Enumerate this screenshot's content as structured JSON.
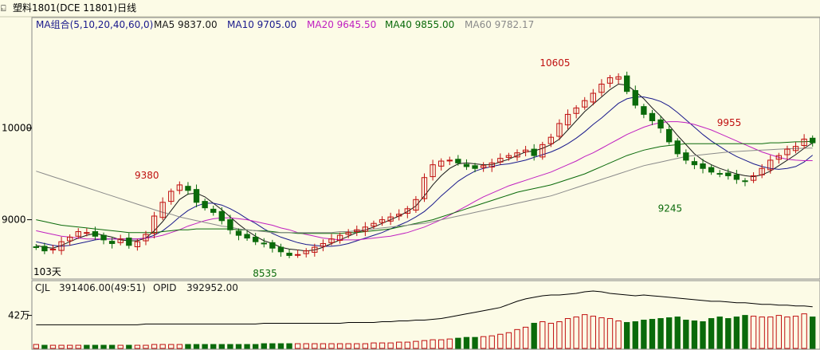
{
  "window": {
    "title": "塑料1801(DCE 11801)日线"
  },
  "legend": [
    {
      "label": "MA组合(5,10,20,40,60,0)",
      "color": "#1a1a8c"
    },
    {
      "label": "MA5 9837.00",
      "color": "#1a1a1a"
    },
    {
      "label": "MA10 9705.00",
      "color": "#1a1a8c"
    },
    {
      "label": "MA20 9645.50",
      "color": "#c020c0"
    },
    {
      "label": "MA40 9855.00",
      "color": "#0a6a0a"
    },
    {
      "label": "MA60 9782.17",
      "color": "#8a8a8a"
    }
  ],
  "volume_legend": [
    {
      "label": "CJL",
      "color": "#1a1a1a"
    },
    {
      "label": "391406.00(49:51)",
      "color": "#1a1a1a"
    },
    {
      "label": "OPID",
      "color": "#1a1a1a"
    },
    {
      "label": "392952.00",
      "color": "#1a1a1a"
    }
  ],
  "left_marker": "103天",
  "colors": {
    "up": "#c01010",
    "down": "#0a6a0a",
    "grid": "#d8d8c0",
    "axis": "#000000"
  },
  "chart_data": [
    {
      "type": "candlestick",
      "title": "塑料1801(DCE 11801)日线",
      "y_ticks": [
        9000,
        10000
      ],
      "ylim": [
        8370,
        11050
      ],
      "annotations": [
        {
          "label": "9380",
          "index": 13,
          "value": 9380
        },
        {
          "label": "8535",
          "index": 27,
          "value": 8535
        },
        {
          "label": "10605",
          "index": 61,
          "value": 10605
        },
        {
          "label": "9245",
          "index": 75,
          "value": 9245
        },
        {
          "label": "9955",
          "index": 82,
          "value": 9955
        }
      ],
      "closes": [
        8700,
        8660,
        8680,
        8760,
        8810,
        8870,
        8860,
        8820,
        8780,
        8740,
        8790,
        8720,
        8760,
        8840,
        9040,
        9190,
        9310,
        9380,
        9320,
        9190,
        9130,
        9080,
        8990,
        8890,
        8830,
        8800,
        8760,
        8740,
        8690,
        8650,
        8610,
        8620,
        8660,
        8700,
        8740,
        8790,
        8830,
        8860,
        8890,
        8920,
        8960,
        9000,
        9030,
        9060,
        9120,
        9220,
        9460,
        9600,
        9640,
        9650,
        9620,
        9580,
        9560,
        9590,
        9620,
        9670,
        9700,
        9730,
        9760,
        9700,
        9820,
        9900,
        10050,
        10150,
        10220,
        10300,
        10380,
        10480,
        10550,
        10560,
        10400,
        10250,
        10150,
        10080,
        10000,
        9850,
        9720,
        9650,
        9600,
        9560,
        9520,
        9500,
        9480,
        9440,
        9420,
        9480,
        9560,
        9650,
        9700,
        9770,
        9800,
        9880,
        9840
      ],
      "series": [
        {
          "name": "MA5",
          "values": [
            8720,
            8700,
            8690,
            8720,
            8760,
            8800,
            8830,
            8850,
            8830,
            8810,
            8780,
            8770,
            8770,
            8800,
            8880,
            8980,
            9100,
            9220,
            9280,
            9290,
            9250,
            9180,
            9110,
            9030,
            8950,
            8880,
            8820,
            8770,
            8740,
            8700,
            8680,
            8670,
            8660,
            8670,
            8700,
            8740,
            8780,
            8820,
            8860,
            8890,
            8920,
            8960,
            9000,
            9040,
            9090,
            9150,
            9260,
            9380,
            9480,
            9560,
            9610,
            9620,
            9610,
            9600,
            9600,
            9630,
            9660,
            9700,
            9740,
            9750,
            9780,
            9820,
            9880,
            9980,
            10080,
            10180,
            10260,
            10340,
            10420,
            10480,
            10470,
            10400,
            10320,
            10220,
            10130,
            10030,
            9920,
            9820,
            9720,
            9650,
            9600,
            9560,
            9530,
            9500,
            9480,
            9470,
            9490,
            9530,
            9590,
            9650,
            9710,
            9780,
            9837
          ]
        },
        {
          "name": "MA10",
          "values": [
            8760,
            8740,
            8720,
            8710,
            8720,
            8740,
            8760,
            8780,
            8790,
            8790,
            8790,
            8790,
            8790,
            8800,
            8830,
            8880,
            8950,
            9030,
            9100,
            9150,
            9180,
            9180,
            9160,
            9120,
            9070,
            9010,
            8960,
            8900,
            8850,
            8810,
            8780,
            8750,
            8730,
            8720,
            8710,
            8710,
            8720,
            8740,
            8770,
            8800,
            8830,
            8860,
            8900,
            8940,
            8980,
            9030,
            9090,
            9170,
            9260,
            9340,
            9420,
            9480,
            9530,
            9560,
            9580,
            9600,
            9610,
            9630,
            9650,
            9680,
            9710,
            9740,
            9780,
            9830,
            9890,
            9960,
            10040,
            10110,
            10190,
            10270,
            10320,
            10340,
            10340,
            10320,
            10290,
            10240,
            10170,
            10090,
            10010,
            9930,
            9860,
            9800,
            9740,
            9690,
            9650,
            9610,
            9580,
            9560,
            9550,
            9560,
            9580,
            9630,
            9705
          ]
        },
        {
          "name": "MA20",
          "values": [
            8880,
            8860,
            8840,
            8820,
            8810,
            8800,
            8790,
            8790,
            8790,
            8790,
            8790,
            8790,
            8790,
            8800,
            8810,
            8830,
            8860,
            8890,
            8930,
            8960,
            8990,
            9010,
            9020,
            9020,
            9010,
            9000,
            8980,
            8960,
            8940,
            8910,
            8890,
            8860,
            8840,
            8820,
            8800,
            8790,
            8780,
            8780,
            8780,
            8790,
            8800,
            8810,
            8820,
            8840,
            8860,
            8890,
            8920,
            8960,
            9000,
            9050,
            9100,
            9150,
            9200,
            9250,
            9290,
            9330,
            9370,
            9400,
            9430,
            9460,
            9490,
            9520,
            9560,
            9600,
            9640,
            9690,
            9730,
            9780,
            9830,
            9880,
            9930,
            9970,
            10010,
            10040,
            10060,
            10070,
            10070,
            10060,
            10040,
            10010,
            9980,
            9940,
            9900,
            9860,
            9820,
            9780,
            9740,
            9710,
            9680,
            9660,
            9650,
            9645,
            9645
          ]
        },
        {
          "name": "MA40",
          "values": [
            9000,
            8980,
            8960,
            8940,
            8930,
            8920,
            8910,
            8900,
            8890,
            8880,
            8870,
            8860,
            8860,
            8860,
            8860,
            8870,
            8880,
            8890,
            8890,
            8900,
            8900,
            8900,
            8900,
            8900,
            8890,
            8890,
            8880,
            8880,
            8870,
            8860,
            8860,
            8850,
            8850,
            8850,
            8850,
            8850,
            8850,
            8860,
            8860,
            8870,
            8880,
            8890,
            8900,
            8920,
            8940,
            8960,
            8980,
            9000,
            9030,
            9060,
            9090,
            9120,
            9150,
            9180,
            9210,
            9240,
            9270,
            9300,
            9320,
            9340,
            9360,
            9380,
            9410,
            9440,
            9470,
            9500,
            9540,
            9580,
            9620,
            9660,
            9700,
            9730,
            9760,
            9780,
            9800,
            9810,
            9820,
            9830,
            9830,
            9830,
            9830,
            9830,
            9830,
            9830,
            9830,
            9830,
            9830,
            9840,
            9840,
            9845,
            9850,
            9852,
            9855
          ]
        },
        {
          "name": "MA60",
          "values": [
            9530,
            9500,
            9470,
            9440,
            9410,
            9380,
            9350,
            9320,
            9290,
            9260,
            9230,
            9200,
            9170,
            9140,
            9110,
            9080,
            9060,
            9030,
            9010,
            8990,
            8970,
            8950,
            8930,
            8920,
            8900,
            8890,
            8880,
            8870,
            8860,
            8860,
            8860,
            8860,
            8860,
            8860,
            8860,
            8860,
            8870,
            8870,
            8880,
            8890,
            8900,
            8910,
            8920,
            8930,
            8940,
            8950,
            8960,
            8980,
            9000,
            9020,
            9040,
            9060,
            9080,
            9100,
            9120,
            9140,
            9160,
            9180,
            9200,
            9220,
            9240,
            9260,
            9290,
            9320,
            9350,
            9380,
            9410,
            9440,
            9470,
            9500,
            9530,
            9560,
            9590,
            9610,
            9630,
            9650,
            9670,
            9690,
            9700,
            9710,
            9720,
            9730,
            9740,
            9745,
            9750,
            9755,
            9760,
            9765,
            9770,
            9774,
            9778,
            9780,
            9782
          ]
        }
      ],
      "volume": {
        "y_ticks": [
          "42万"
        ],
        "values": [
          3,
          3,
          3,
          3,
          3,
          3,
          3,
          3,
          3,
          3,
          3,
          3,
          3,
          3,
          3,
          3,
          3,
          3,
          3,
          3,
          3,
          3,
          3,
          3,
          3,
          3,
          3,
          3,
          3,
          3,
          3,
          3,
          3,
          3,
          3,
          3,
          3,
          3,
          3,
          3,
          3,
          3,
          3,
          3,
          3,
          3,
          3,
          3,
          3,
          3,
          3,
          3,
          3,
          3,
          3,
          3,
          3,
          3,
          3,
          3,
          3,
          3,
          3,
          3,
          3,
          3,
          3,
          3,
          3,
          3,
          3,
          3,
          3,
          3,
          3,
          3,
          3,
          3,
          3,
          3,
          3,
          3,
          3,
          3,
          3,
          3,
          3,
          3,
          3,
          3,
          3,
          3,
          3
        ],
        "bars": [
          5,
          4,
          4,
          4,
          4,
          4,
          4,
          4,
          4,
          4,
          4,
          4,
          4,
          4,
          5,
          5,
          5,
          5,
          5,
          5,
          5,
          5,
          5,
          5,
          5,
          5,
          5,
          6,
          6,
          6,
          6,
          6,
          6,
          6,
          6,
          6,
          6,
          6,
          6,
          6,
          7,
          7,
          7,
          8,
          8,
          9,
          10,
          11,
          11,
          12,
          13,
          14,
          14,
          15,
          16,
          18,
          20,
          24,
          27,
          32,
          34,
          32,
          34,
          38,
          40,
          43,
          41,
          39,
          38,
          35,
          33,
          34,
          36,
          37,
          38,
          39,
          40,
          36,
          35,
          34,
          38,
          40,
          38,
          40,
          42,
          41,
          40,
          40,
          42,
          40,
          41,
          44,
          40
        ],
        "opid": [
          30,
          30,
          30,
          30,
          30,
          30,
          30,
          30,
          30,
          30,
          30,
          30,
          30,
          31,
          31,
          31,
          31,
          31,
          31,
          31,
          31,
          31,
          31,
          31,
          31,
          31,
          31,
          32,
          32,
          32,
          32,
          32,
          32,
          32,
          32,
          32,
          32,
          33,
          33,
          33,
          33,
          34,
          34,
          35,
          35,
          36,
          36,
          37,
          38,
          40,
          42,
          44,
          46,
          48,
          50,
          52,
          56,
          60,
          63,
          65,
          67,
          68,
          68,
          69,
          70,
          72,
          73,
          72,
          70,
          69,
          68,
          67,
          68,
          67,
          66,
          65,
          64,
          63,
          62,
          61,
          60,
          60,
          59,
          58,
          58,
          57,
          56,
          56,
          55,
          55,
          54,
          54,
          53
        ]
      }
    }
  ]
}
